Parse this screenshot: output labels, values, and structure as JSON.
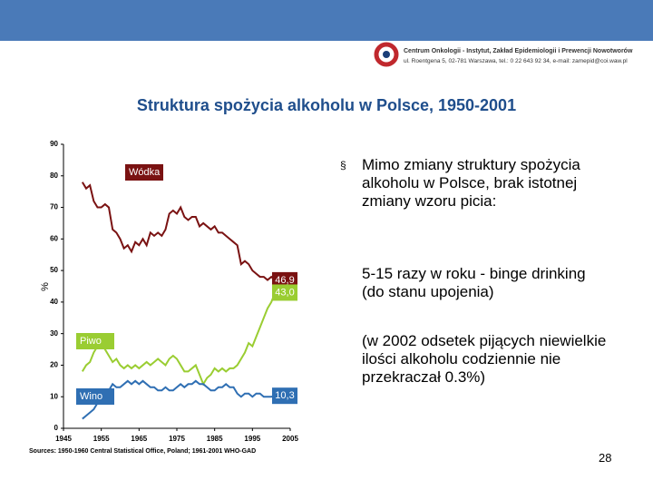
{
  "header": {
    "institution": "Centrum Onkologii - Instytut, Zakład Epidemiologii i Prewencji Nowotworów",
    "address": "ul. Roentgena 5, 02-781 Warszawa, tel.: 0 22 643 92 34, e-mail: zamepid@coi.waw.pl"
  },
  "chart_data": {
    "type": "line",
    "title": "Struktura spożycia alkoholu w Polsce, 1950-2001",
    "y_label": "%",
    "source": "Sources: 1950-1960 Central Statistical Office, Poland; 1961-2001 WHO-GAD",
    "x": [
      1950,
      1951,
      1952,
      1953,
      1954,
      1955,
      1956,
      1957,
      1958,
      1959,
      1960,
      1961,
      1962,
      1963,
      1964,
      1965,
      1966,
      1967,
      1968,
      1969,
      1970,
      1971,
      1972,
      1973,
      1974,
      1975,
      1976,
      1977,
      1978,
      1979,
      1980,
      1981,
      1982,
      1983,
      1984,
      1985,
      1986,
      1987,
      1988,
      1989,
      1990,
      1991,
      1992,
      1993,
      1994,
      1995,
      1996,
      1997,
      1998,
      1999,
      2000,
      2001
    ],
    "xlim": [
      1945,
      2005
    ],
    "xticks": [
      1945,
      1955,
      1965,
      1975,
      1985,
      1995,
      2005
    ],
    "ylim": [
      0,
      90
    ],
    "yticks": [
      0,
      10,
      20,
      30,
      40,
      50,
      60,
      70,
      80,
      90
    ],
    "series": [
      {
        "name": "Wódka",
        "color": "#7a1212",
        "values": [
          78,
          76,
          77,
          72,
          70,
          70,
          71,
          70,
          63,
          62,
          60,
          57,
          58,
          56,
          59,
          58,
          60,
          58,
          62,
          61,
          62,
          61,
          63,
          68,
          69,
          68,
          70,
          67,
          66,
          67,
          67,
          64,
          65,
          64,
          63,
          64,
          62,
          62,
          61,
          60,
          59,
          58,
          52,
          53,
          52,
          50,
          49,
          48,
          48,
          47,
          48,
          46.9
        ],
        "value_labels": [
          null,
          null,
          null,
          null,
          null,
          null,
          null,
          null,
          null,
          null,
          null,
          null,
          null,
          null,
          null,
          null,
          null,
          null,
          null,
          null,
          null,
          null,
          null,
          null,
          null,
          null,
          null,
          null,
          null,
          null,
          null,
          null,
          null,
          null,
          null,
          null,
          null,
          null,
          null,
          null,
          null,
          null,
          null,
          null,
          null,
          null,
          null,
          null,
          null,
          null,
          null,
          "46,9"
        ]
      },
      {
        "name": "Piwo",
        "color": "#9acd32",
        "values": [
          18,
          20,
          21,
          24,
          26,
          27,
          25,
          23,
          21,
          22,
          20,
          19,
          20,
          19,
          20,
          19,
          20,
          21,
          20,
          21,
          22,
          21,
          20,
          22,
          23,
          22,
          20,
          18,
          18,
          19,
          20,
          17,
          14,
          16,
          17,
          19,
          18,
          19,
          18,
          19,
          19,
          20,
          22,
          24,
          27,
          26,
          29,
          32,
          35,
          38,
          40,
          43.0
        ],
        "value_labels": [
          null,
          null,
          null,
          null,
          null,
          null,
          null,
          null,
          null,
          null,
          null,
          null,
          null,
          null,
          null,
          null,
          null,
          null,
          null,
          null,
          null,
          null,
          null,
          null,
          null,
          null,
          null,
          null,
          null,
          null,
          null,
          null,
          null,
          null,
          null,
          null,
          null,
          null,
          null,
          null,
          null,
          null,
          null,
          null,
          null,
          null,
          null,
          null,
          null,
          null,
          null,
          "43,0"
        ]
      },
      {
        "name": "Wino",
        "color": "#2f6fb3",
        "values": [
          3,
          4,
          5,
          6,
          8,
          10,
          11,
          12,
          14,
          13,
          13,
          14,
          15,
          14,
          15,
          14,
          15,
          14,
          13,
          13,
          12,
          12,
          13,
          12,
          12,
          13,
          14,
          13,
          14,
          14,
          15,
          14,
          14,
          13,
          12,
          12,
          13,
          13,
          14,
          13,
          13,
          11,
          10,
          11,
          11,
          10,
          11,
          11,
          10,
          10,
          10,
          10.3
        ],
        "value_labels": [
          null,
          null,
          null,
          null,
          null,
          null,
          null,
          null,
          null,
          null,
          null,
          null,
          null,
          null,
          null,
          null,
          null,
          null,
          null,
          null,
          null,
          null,
          null,
          null,
          null,
          null,
          null,
          null,
          null,
          null,
          null,
          null,
          null,
          null,
          null,
          null,
          null,
          null,
          null,
          null,
          null,
          null,
          null,
          null,
          null,
          null,
          null,
          null,
          null,
          null,
          null,
          "10,3"
        ]
      }
    ]
  },
  "bullets": [
    "Mimo zmiany struktury spożycia alkoholu w Polsce, brak istotnej zmiany wzoru picia:",
    "5-15 razy w roku - binge drinking (do stanu upojenia)",
    "(w 2002 odsetek pijących niewielkie ilości alkoholu codziennie nie przekraczał 0.3%)"
  ],
  "page_number": "28"
}
